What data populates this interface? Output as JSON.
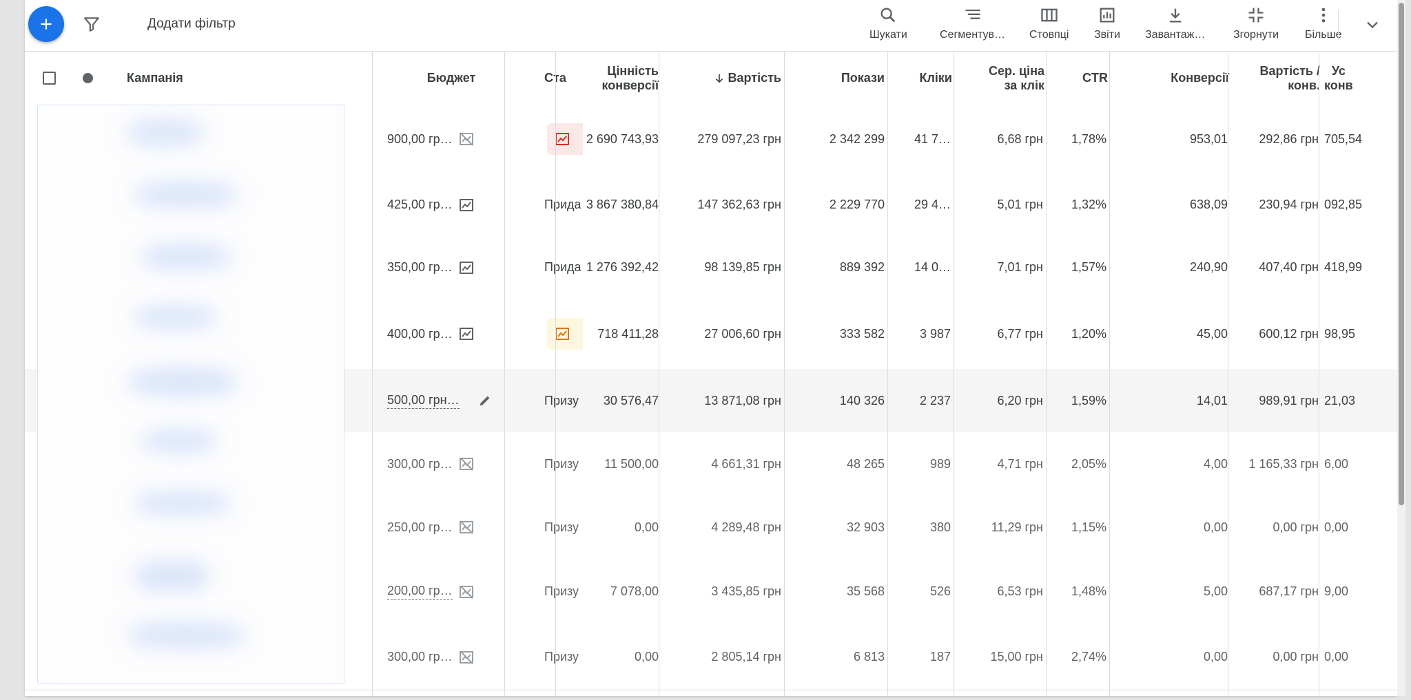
{
  "toolbar": {
    "add_filter": "Додати фільтр",
    "tools": [
      {
        "label": "Шукати",
        "icon": "search-icon"
      },
      {
        "label": "Сегментув…",
        "icon": "segment-icon"
      },
      {
        "label": "Стовпці",
        "icon": "columns-icon"
      },
      {
        "label": "Звіти",
        "icon": "reports-icon"
      },
      {
        "label": "Завантаж…",
        "icon": "download-icon"
      },
      {
        "label": "Згорнути",
        "icon": "collapse-icon"
      },
      {
        "label": "Більше",
        "icon": "more-vert-icon"
      }
    ]
  },
  "table": {
    "headers": {
      "campaign": "Кампанія",
      "budget": "Бюджет",
      "status": "Ста",
      "conv_value_1": "Цінність",
      "conv_value_2": "конверсії",
      "cost": "Вартість",
      "impressions": "Покази",
      "clicks": "Кліки",
      "avg_cpc_1": "Сер. ціна",
      "avg_cpc_2": "за клік",
      "ctr": "CTR",
      "conversions": "Конверсії",
      "cost_conv_1": "Вартість /",
      "cost_conv_2": "конв.",
      "all_conv_1": "Ус",
      "all_conv_2": "конв"
    },
    "sort": {
      "column": "cost",
      "direction": "desc"
    },
    "rows": [
      {
        "budget": "900,00 гр…",
        "budget_icon": "chart-off-icon",
        "status": "",
        "status_chip": "red",
        "conv_value": "2 690 743,93",
        "cost": "279 097,23 грн",
        "impressions": "2 342 299",
        "clicks": "41 7…",
        "avg_cpc": "6,68 грн",
        "ctr": "1,78%",
        "conversions": "953,01",
        "cost_conv": "292,86 грн",
        "all_conv": "705,54"
      },
      {
        "budget": "425,00 гр…",
        "budget_icon": "chart-icon",
        "status": "Прида",
        "status_chip": "",
        "conv_value": "3 867 380,84",
        "cost": "147 362,63 грн",
        "impressions": "2 229 770",
        "clicks": "29 4…",
        "avg_cpc": "5,01 грн",
        "ctr": "1,32%",
        "conversions": "638,09",
        "cost_conv": "230,94 грн",
        "all_conv": "092,85"
      },
      {
        "budget": "350,00 гр…",
        "budget_icon": "chart-icon",
        "status": "Прида",
        "status_chip": "",
        "conv_value": "1 276 392,42",
        "cost": "98 139,85 грн",
        "impressions": "889 392",
        "clicks": "14 0…",
        "avg_cpc": "7,01 грн",
        "ctr": "1,57%",
        "conversions": "240,90",
        "cost_conv": "407,40 грн",
        "all_conv": "418,99"
      },
      {
        "budget": "400,00 гр…",
        "budget_icon": "chart-icon",
        "status": "",
        "status_chip": "yellow",
        "conv_value": "718 411,28",
        "cost": "27 006,60 грн",
        "impressions": "333 582",
        "clicks": "3 987",
        "avg_cpc": "6,77 грн",
        "ctr": "1,20%",
        "conversions": "45,00",
        "cost_conv": "600,12 грн",
        "all_conv": "98,95"
      },
      {
        "budget": "500,00 грн…",
        "budget_icon": "edit-icon",
        "status": "Призу",
        "status_chip": "",
        "conv_value": "30 576,47",
        "cost": "13 871,08 грн",
        "impressions": "140 326",
        "clicks": "2 237",
        "avg_cpc": "6,20 грн",
        "ctr": "1,59%",
        "conversions": "14,01",
        "cost_conv": "989,91 грн",
        "all_conv": "21,03"
      },
      {
        "budget": "300,00 гр…",
        "budget_icon": "chart-off-icon",
        "status": "Призу",
        "status_chip": "",
        "conv_value": "11 500,00",
        "cost": "4 661,31 грн",
        "impressions": "48 265",
        "clicks": "989",
        "avg_cpc": "4,71 грн",
        "ctr": "2,05%",
        "conversions": "4,00",
        "cost_conv": "1 165,33 грн",
        "all_conv": "6,00"
      },
      {
        "budget": "250,00 гр…",
        "budget_icon": "chart-off-icon",
        "status": "Призу",
        "status_chip": "",
        "conv_value": "0,00",
        "cost": "4 289,48 грн",
        "impressions": "32 903",
        "clicks": "380",
        "avg_cpc": "11,29 грн",
        "ctr": "1,15%",
        "conversions": "0,00",
        "cost_conv": "0,00 грн",
        "all_conv": "0,00"
      },
      {
        "budget": "200,00 гр…",
        "budget_icon": "chart-off-icon",
        "status": "Призу",
        "status_chip": "",
        "conv_value": "7 078,00",
        "cost": "3 435,85 грн",
        "impressions": "35 568",
        "clicks": "526",
        "avg_cpc": "6,53 грн",
        "ctr": "1,48%",
        "conversions": "5,00",
        "cost_conv": "687,17 грн",
        "all_conv": "9,00"
      },
      {
        "budget": "300,00 гр…",
        "budget_icon": "chart-off-icon",
        "status": "Призу",
        "status_chip": "",
        "conv_value": "0,00",
        "cost": "2 805,14 грн",
        "impressions": "6 813",
        "clicks": "187",
        "avg_cpc": "15,00 грн",
        "ctr": "2,74%",
        "conversions": "0,00",
        "cost_conv": "0,00 грн",
        "all_conv": "0,00"
      }
    ]
  },
  "colors": {
    "accent": "#1a73e8",
    "chip_red": "#fce8e6",
    "chip_yellow": "#fef7e0",
    "icon_red": "#d93025",
    "icon_orange": "#e37400"
  }
}
